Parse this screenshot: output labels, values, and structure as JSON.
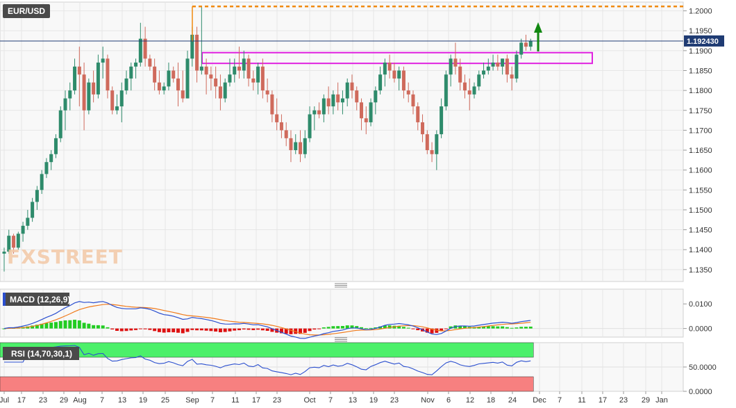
{
  "symbol": "EUR/USD",
  "watermark": "FXSTREET",
  "price_tag": "1.192430",
  "indicators": {
    "macd_label": "MACD (12,26,9)",
    "rsi_label": "RSI (14,70,30,1)"
  },
  "colors": {
    "bull": "#2e8b6b",
    "bear": "#cf6a5c",
    "macd": "#2b4fcf",
    "signal": "#f07a1a",
    "hist_pos": "#22cc22",
    "hist_neg": "#dd1111",
    "zone": "#e020e0",
    "resistance": "#f08a10",
    "arrow": "#118811",
    "rsi_over": "#4cf06a",
    "rsi_under": "#f78080"
  },
  "chart_data": {
    "type": "candlestick",
    "title": "EUR/USD",
    "y_ticks": [
      "1.2000",
      "1.1950",
      "1.1900",
      "1.1850",
      "1.1800",
      "1.1750",
      "1.1700",
      "1.1650",
      "1.1600",
      "1.1550",
      "1.1500",
      "1.1450",
      "1.1400",
      "1.1350"
    ],
    "x_ticks": [
      "Jul",
      "17",
      "23",
      "29",
      "Aug",
      "7",
      "13",
      "19",
      "25",
      "Sep",
      "7",
      "11",
      "17",
      "23",
      "Oct",
      "7",
      "13",
      "19",
      "23",
      "Nov",
      "6",
      "12",
      "18",
      "24",
      "Dec",
      "7",
      "11",
      "17",
      "23",
      "29",
      "Jan"
    ],
    "ylim": [
      1.132,
      1.2022
    ],
    "last_price": 1.19243,
    "resistance_level": 1.2011,
    "zone": {
      "from": "Sep 3",
      "to": "Dec 13",
      "low": 1.1868,
      "high": 1.1895
    },
    "candles": [
      [
        1.139,
        1.1405,
        1.1345,
        1.1395
      ],
      [
        1.1395,
        1.145,
        1.139,
        1.1435
      ],
      [
        1.1435,
        1.144,
        1.139,
        1.1405
      ],
      [
        1.1405,
        1.1445,
        1.14,
        1.144
      ],
      [
        1.144,
        1.147,
        1.142,
        1.146
      ],
      [
        1.146,
        1.15,
        1.145,
        1.148
      ],
      [
        1.148,
        1.153,
        1.147,
        1.152
      ],
      [
        1.152,
        1.156,
        1.15,
        1.155
      ],
      [
        1.155,
        1.16,
        1.154,
        1.159
      ],
      [
        1.159,
        1.163,
        1.158,
        1.162
      ],
      [
        1.162,
        1.165,
        1.16,
        1.164
      ],
      [
        1.164,
        1.169,
        1.163,
        1.168
      ],
      [
        1.168,
        1.176,
        1.167,
        1.175
      ],
      [
        1.175,
        1.18,
        1.17,
        1.178
      ],
      [
        1.178,
        1.182,
        1.175,
        1.18
      ],
      [
        1.18,
        1.188,
        1.179,
        1.186
      ],
      [
        1.186,
        1.191,
        1.176,
        1.184
      ],
      [
        1.184,
        1.187,
        1.17,
        1.175
      ],
      [
        1.175,
        1.183,
        1.174,
        1.182
      ],
      [
        1.182,
        1.185,
        1.177,
        1.179
      ],
      [
        1.179,
        1.189,
        1.178,
        1.187
      ],
      [
        1.187,
        1.191,
        1.183,
        1.188
      ],
      [
        1.188,
        1.189,
        1.178,
        1.18
      ],
      [
        1.18,
        1.181,
        1.174,
        1.175
      ],
      [
        1.175,
        1.179,
        1.174,
        1.176
      ],
      [
        1.176,
        1.182,
        1.172,
        1.18
      ],
      [
        1.18,
        1.185,
        1.179,
        1.183
      ],
      [
        1.183,
        1.187,
        1.18,
        1.186
      ],
      [
        1.186,
        1.188,
        1.183,
        1.187
      ],
      [
        1.187,
        1.197,
        1.186,
        1.193
      ],
      [
        1.193,
        1.196,
        1.186,
        1.188
      ],
      [
        1.188,
        1.189,
        1.185,
        1.186
      ],
      [
        1.186,
        1.188,
        1.18,
        1.182
      ],
      [
        1.182,
        1.185,
        1.179,
        1.18
      ],
      [
        1.18,
        1.182,
        1.179,
        1.181
      ],
      [
        1.181,
        1.187,
        1.18,
        1.185
      ],
      [
        1.185,
        1.186,
        1.182,
        1.183
      ],
      [
        1.183,
        1.187,
        1.176,
        1.18
      ],
      [
        1.18,
        1.185,
        1.177,
        1.178
      ],
      [
        1.178,
        1.19,
        1.178,
        1.188
      ],
      [
        1.188,
        1.196,
        1.186,
        1.194
      ],
      [
        1.194,
        1.196,
        1.182,
        1.185
      ],
      [
        1.185,
        1.201,
        1.184,
        1.186
      ],
      [
        1.186,
        1.188,
        1.179,
        1.184
      ],
      [
        1.184,
        1.186,
        1.18,
        1.183
      ],
      [
        1.183,
        1.186,
        1.178,
        1.181
      ],
      [
        1.181,
        1.184,
        1.175,
        1.178
      ],
      [
        1.178,
        1.183,
        1.177,
        1.182
      ],
      [
        1.182,
        1.188,
        1.181,
        1.184
      ],
      [
        1.184,
        1.188,
        1.182,
        1.186
      ],
      [
        1.186,
        1.191,
        1.183,
        1.185
      ],
      [
        1.185,
        1.19,
        1.183,
        1.188
      ],
      [
        1.188,
        1.189,
        1.181,
        1.183
      ],
      [
        1.183,
        1.185,
        1.18,
        1.182
      ],
      [
        1.182,
        1.187,
        1.179,
        1.186
      ],
      [
        1.186,
        1.188,
        1.178,
        1.18
      ],
      [
        1.18,
        1.183,
        1.177,
        1.179
      ],
      [
        1.179,
        1.18,
        1.172,
        1.174
      ],
      [
        1.174,
        1.178,
        1.17,
        1.172
      ],
      [
        1.172,
        1.174,
        1.168,
        1.17
      ],
      [
        1.17,
        1.172,
        1.166,
        1.168
      ],
      [
        1.168,
        1.17,
        1.162,
        1.165
      ],
      [
        1.165,
        1.169,
        1.164,
        1.167
      ],
      [
        1.167,
        1.17,
        1.162,
        1.164
      ],
      [
        1.164,
        1.17,
        1.163,
        1.168
      ],
      [
        1.168,
        1.176,
        1.167,
        1.174
      ],
      [
        1.174,
        1.176,
        1.17,
        1.175
      ],
      [
        1.175,
        1.177,
        1.173,
        1.174
      ],
      [
        1.174,
        1.179,
        1.172,
        1.178
      ],
      [
        1.178,
        1.181,
        1.174,
        1.176
      ],
      [
        1.176,
        1.18,
        1.174,
        1.179
      ],
      [
        1.179,
        1.182,
        1.175,
        1.177
      ],
      [
        1.177,
        1.18,
        1.174,
        1.178
      ],
      [
        1.178,
        1.183,
        1.176,
        1.182
      ],
      [
        1.182,
        1.184,
        1.178,
        1.18
      ],
      [
        1.18,
        1.181,
        1.175,
        1.177
      ],
      [
        1.177,
        1.178,
        1.17,
        1.173
      ],
      [
        1.173,
        1.176,
        1.169,
        1.172
      ],
      [
        1.172,
        1.178,
        1.171,
        1.177
      ],
      [
        1.177,
        1.181,
        1.174,
        1.18
      ],
      [
        1.18,
        1.186,
        1.179,
        1.184
      ],
      [
        1.184,
        1.188,
        1.181,
        1.187
      ],
      [
        1.187,
        1.189,
        1.183,
        1.185
      ],
      [
        1.185,
        1.187,
        1.182,
        1.183
      ],
      [
        1.183,
        1.186,
        1.18,
        1.185
      ],
      [
        1.185,
        1.186,
        1.178,
        1.18
      ],
      [
        1.18,
        1.182,
        1.177,
        1.179
      ],
      [
        1.179,
        1.18,
        1.174,
        1.176
      ],
      [
        1.176,
        1.177,
        1.17,
        1.172
      ],
      [
        1.172,
        1.174,
        1.167,
        1.169
      ],
      [
        1.169,
        1.17,
        1.164,
        1.165
      ],
      [
        1.165,
        1.167,
        1.162,
        1.164
      ],
      [
        1.164,
        1.17,
        1.16,
        1.169
      ],
      [
        1.169,
        1.178,
        1.168,
        1.176
      ],
      [
        1.176,
        1.185,
        1.175,
        1.184
      ],
      [
        1.184,
        1.189,
        1.181,
        1.188
      ],
      [
        1.188,
        1.192,
        1.184,
        1.186
      ],
      [
        1.186,
        1.188,
        1.18,
        1.182
      ],
      [
        1.182,
        1.184,
        1.178,
        1.18
      ],
      [
        1.18,
        1.183,
        1.175,
        1.179
      ],
      [
        1.179,
        1.182,
        1.178,
        1.181
      ],
      [
        1.181,
        1.185,
        1.18,
        1.184
      ],
      [
        1.184,
        1.187,
        1.183,
        1.185
      ],
      [
        1.185,
        1.188,
        1.184,
        1.186
      ],
      [
        1.186,
        1.189,
        1.185,
        1.187
      ],
      [
        1.187,
        1.189,
        1.185,
        1.186
      ],
      [
        1.186,
        1.188,
        1.184,
        1.188
      ],
      [
        1.188,
        1.189,
        1.182,
        1.184
      ],
      [
        1.184,
        1.186,
        1.18,
        1.183
      ],
      [
        1.183,
        1.19,
        1.182,
        1.189
      ],
      [
        1.189,
        1.193,
        1.188,
        1.192
      ],
      [
        1.192,
        1.194,
        1.19,
        1.191
      ],
      [
        1.191,
        1.193,
        1.19,
        1.1924
      ]
    ],
    "macd": {
      "label": "MACD (12,26,9)",
      "y_ticks": [
        "0.0100",
        "0.0000"
      ],
      "ylim": [
        -0.0035,
        0.016
      ]
    },
    "rsi": {
      "label": "RSI (14,70,30,1)",
      "y_ticks": [
        "50.0000",
        "0.0000"
      ],
      "ylim": [
        0,
        100
      ],
      "overbought": 70,
      "oversold": 30
    }
  }
}
